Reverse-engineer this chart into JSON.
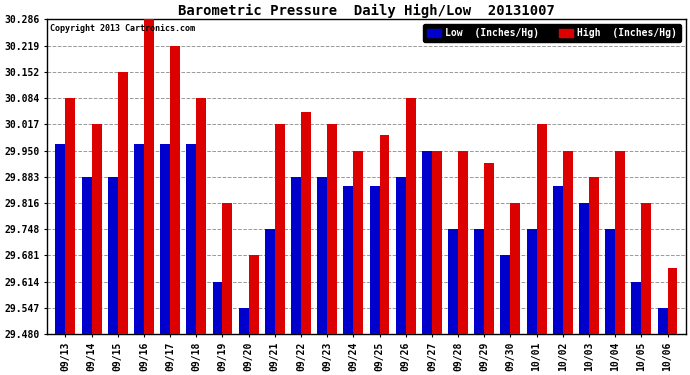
{
  "title": "Barometric Pressure  Daily High/Low  20131007",
  "copyright": "Copyright 2013 Cartronics.com",
  "legend_low": "Low  (Inches/Hg)",
  "legend_high": "High  (Inches/Hg)",
  "dates": [
    "09/13",
    "09/14",
    "09/15",
    "09/16",
    "09/17",
    "09/18",
    "09/19",
    "09/20",
    "09/21",
    "09/22",
    "09/23",
    "09/24",
    "09/25",
    "09/26",
    "09/27",
    "09/28",
    "09/29",
    "09/30",
    "10/01",
    "10/02",
    "10/03",
    "10/04",
    "10/05",
    "10/06"
  ],
  "high": [
    30.084,
    30.017,
    30.152,
    30.353,
    30.219,
    30.084,
    29.816,
    29.681,
    30.017,
    30.05,
    30.017,
    29.95,
    29.99,
    30.084,
    29.95,
    29.95,
    29.917,
    29.816,
    30.017,
    29.95,
    29.883,
    29.95,
    29.816,
    29.65
  ],
  "low": [
    29.967,
    29.883,
    29.883,
    29.967,
    29.967,
    29.967,
    29.614,
    29.547,
    29.748,
    29.883,
    29.883,
    29.86,
    29.86,
    29.883,
    29.95,
    29.748,
    29.748,
    29.681,
    29.748,
    29.86,
    29.816,
    29.748,
    29.614,
    29.547
  ],
  "ylim_min": 29.48,
  "ylim_max": 30.286,
  "yticks": [
    29.48,
    29.547,
    29.614,
    29.681,
    29.748,
    29.816,
    29.883,
    29.95,
    30.017,
    30.084,
    30.152,
    30.219,
    30.286
  ],
  "bar_width": 0.38,
  "low_color": "#0000cc",
  "high_color": "#dd0000",
  "bg_color": "#ffffff",
  "plot_bg_color": "#ffffff",
  "grid_color": "#999999",
  "title_fontsize": 10,
  "tick_fontsize": 7,
  "legend_fontsize": 7,
  "copyright_fontsize": 6
}
